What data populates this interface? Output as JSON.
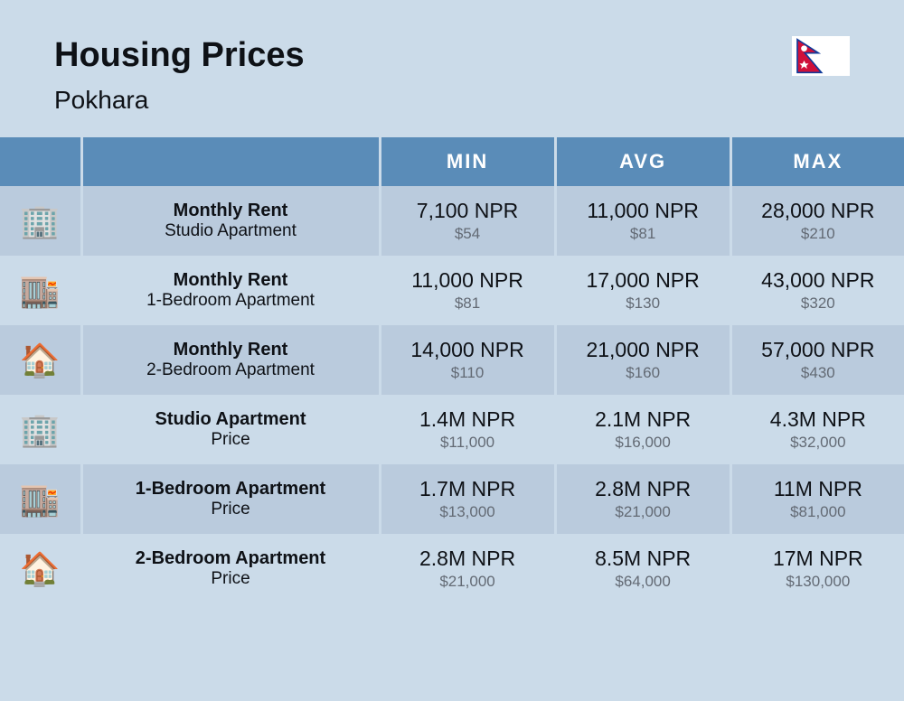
{
  "header": {
    "title": "Housing Prices",
    "city": "Pokhara"
  },
  "columns": [
    "MIN",
    "AVG",
    "MAX"
  ],
  "rows": [
    {
      "icon": "🏢",
      "title": "Monthly Rent",
      "subtitle": "Studio Apartment",
      "min_main": "7,100 NPR",
      "min_sub": "$54",
      "avg_main": "11,000 NPR",
      "avg_sub": "$81",
      "max_main": "28,000 NPR",
      "max_sub": "$210"
    },
    {
      "icon": "🏬",
      "title": "Monthly Rent",
      "subtitle": "1-Bedroom Apartment",
      "min_main": "11,000 NPR",
      "min_sub": "$81",
      "avg_main": "17,000 NPR",
      "avg_sub": "$130",
      "max_main": "43,000 NPR",
      "max_sub": "$320"
    },
    {
      "icon": "🏠",
      "title": "Monthly Rent",
      "subtitle": "2-Bedroom Apartment",
      "min_main": "14,000 NPR",
      "min_sub": "$110",
      "avg_main": "21,000 NPR",
      "avg_sub": "$160",
      "max_main": "57,000 NPR",
      "max_sub": "$430"
    },
    {
      "icon": "🏢",
      "title": "Studio Apartment",
      "subtitle": "Price",
      "min_main": "1.4M NPR",
      "min_sub": "$11,000",
      "avg_main": "2.1M NPR",
      "avg_sub": "$16,000",
      "max_main": "4.3M NPR",
      "max_sub": "$32,000"
    },
    {
      "icon": "🏬",
      "title": "1-Bedroom Apartment",
      "subtitle": "Price",
      "min_main": "1.7M NPR",
      "min_sub": "$13,000",
      "avg_main": "2.8M NPR",
      "avg_sub": "$21,000",
      "max_main": "11M NPR",
      "max_sub": "$81,000"
    },
    {
      "icon": "🏠",
      "title": "2-Bedroom Apartment",
      "subtitle": "Price",
      "min_main": "2.8M NPR",
      "min_sub": "$21,000",
      "avg_main": "8.5M NPR",
      "avg_sub": "$64,000",
      "max_main": "17M NPR",
      "max_sub": "$130,000"
    }
  ],
  "styling": {
    "background_color": "#cbdbe9",
    "header_bg": "#5a8cb8",
    "row_odd_bg": "#bacbdd",
    "row_even_bg": "#cbdbe9",
    "title_color": "#0e1116",
    "sub_color": "#636a74",
    "title_fontsize": 38,
    "city_fontsize": 28,
    "col_header_fontsize": 22,
    "price_main_fontsize": 23,
    "price_sub_fontsize": 17,
    "column_widths": {
      "icon": 90,
      "label": 330,
      "data": 193
    }
  }
}
